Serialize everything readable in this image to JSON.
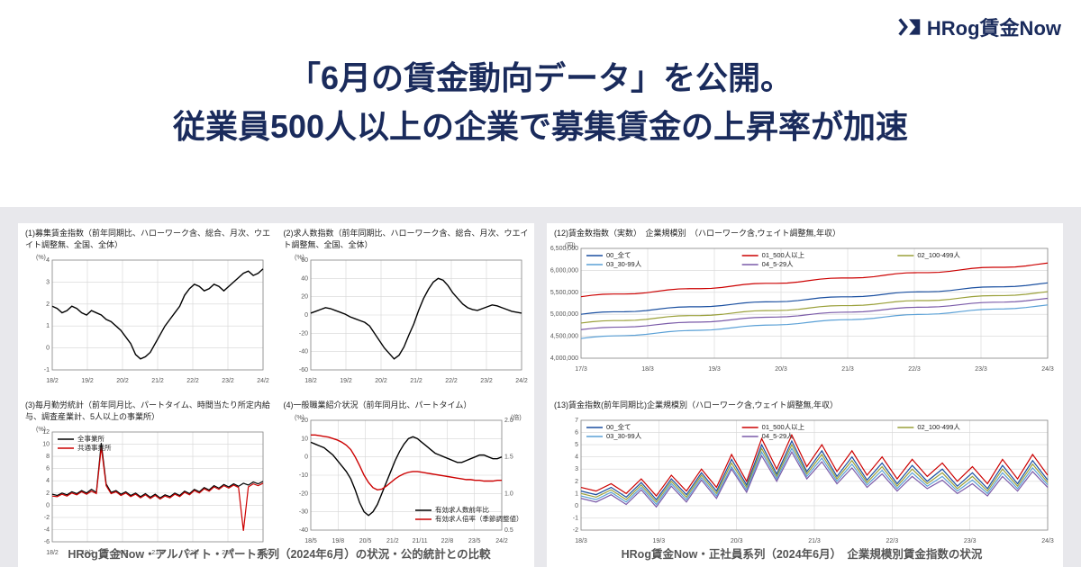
{
  "brand": {
    "name": "HRog賃金Now"
  },
  "headline": {
    "line1": "「6月の賃金動向データ」を公開。",
    "line2": "従業員500人以上の企業で募集賃金の上昇率が加速"
  },
  "captions": {
    "left": "HRog賃金Now・アルバイト・パート系列（2024年6月）の状況・公的統計との比較",
    "right": "HRog賃金Now・正社員系列（2024年6月）　企業規模別賃金指数の状況"
  },
  "x_ticks_a": [
    "18/2",
    "19/2",
    "20/2",
    "21/2",
    "22/2",
    "23/2",
    "24/2"
  ],
  "x_ticks_b": [
    "18/5",
    "19/8",
    "20/5",
    "21/2",
    "21/11",
    "22/8",
    "23/5",
    "24/2"
  ],
  "x_ticks_r1": [
    "17/3",
    "18/3",
    "19/3",
    "20/3",
    "21/3",
    "22/3",
    "23/3",
    "24/3"
  ],
  "x_ticks_r2": [
    "18/3",
    "19/3",
    "20/3",
    "21/3",
    "22/3",
    "23/3",
    "24/3"
  ],
  "charts": {
    "c1": {
      "title": "(1)募集賃金指数（前年同期比、ハローワーク含、総合、月次、ウエイト調整無、全国、全体）",
      "type": "line",
      "ylim": [
        -1.0,
        4.0
      ],
      "yticks": [
        -1,
        0,
        1,
        2,
        3,
        4
      ],
      "unit_label": "(%)",
      "series": [
        {
          "name": "全事業所",
          "color": "#000000",
          "width": 1.4,
          "y": [
            1.9,
            1.8,
            1.6,
            1.7,
            1.9,
            1.8,
            1.6,
            1.5,
            1.7,
            1.6,
            1.5,
            1.3,
            1.2,
            1.0,
            0.8,
            0.5,
            0.2,
            -0.3,
            -0.5,
            -0.4,
            -0.2,
            0.2,
            0.6,
            1.0,
            1.3,
            1.6,
            1.9,
            2.4,
            2.7,
            2.9,
            2.8,
            2.6,
            2.7,
            2.9,
            2.8,
            2.6,
            2.8,
            3.0,
            3.2,
            3.4,
            3.5,
            3.3,
            3.4,
            3.6
          ]
        }
      ]
    },
    "c2": {
      "title": "(2)求人数指数（前年同期比、ハローワーク含、総合、月次、ウエイト調整無、全国、全体）",
      "type": "line",
      "ylim": [
        -60,
        60
      ],
      "yticks": [
        -60,
        -40,
        -20,
        0,
        20,
        40,
        60
      ],
      "unit_label": "(%)",
      "series": [
        {
          "name": "全事業所",
          "color": "#000000",
          "width": 1.4,
          "y": [
            2,
            4,
            6,
            8,
            7,
            5,
            3,
            1,
            -2,
            -4,
            -6,
            -8,
            -12,
            -20,
            -28,
            -36,
            -42,
            -48,
            -44,
            -35,
            -22,
            -10,
            5,
            18,
            28,
            36,
            40,
            38,
            32,
            24,
            18,
            12,
            8,
            6,
            5,
            7,
            9,
            11,
            10,
            8,
            6,
            4,
            3,
            2
          ]
        }
      ]
    },
    "c3": {
      "title": "(3)毎月勤労統計（前年同月比、パートタイム、時間当たり所定内給与、調査産業計、5人以上の事業所）",
      "type": "line",
      "ylim": [
        -6,
        12
      ],
      "yticks": [
        -6,
        -4,
        -2,
        0,
        2,
        4,
        6,
        8,
        10,
        12
      ],
      "unit_label": "(%)",
      "legend_items": [
        {
          "label": "全事業所",
          "color": "#000000"
        },
        {
          "label": "共通事業所",
          "color": "#cc0000"
        }
      ],
      "series": [
        {
          "name": "全事業所",
          "color": "#000000",
          "width": 1.2,
          "y": [
            1.8,
            1.6,
            2.0,
            1.7,
            2.2,
            1.9,
            2.4,
            2.0,
            2.6,
            2.1,
            10.2,
            3.5,
            2.1,
            2.4,
            1.8,
            2.2,
            1.6,
            2.0,
            1.4,
            1.9,
            1.3,
            1.8,
            1.2,
            1.7,
            1.4,
            2.0,
            1.6,
            2.3,
            1.9,
            2.6,
            2.2,
            2.9,
            2.5,
            3.2,
            2.8,
            3.4,
            3.0,
            3.5,
            3.1,
            3.6,
            3.3,
            3.8,
            3.5,
            3.9
          ]
        },
        {
          "name": "共通事業所",
          "color": "#cc0000",
          "width": 1.2,
          "y": [
            1.5,
            1.4,
            1.8,
            1.5,
            2.0,
            1.7,
            2.2,
            1.8,
            2.3,
            1.9,
            9.5,
            3.2,
            1.9,
            2.2,
            1.6,
            2.0,
            1.4,
            1.8,
            1.2,
            1.7,
            1.1,
            1.6,
            1.0,
            1.5,
            1.2,
            1.8,
            1.4,
            2.1,
            1.7,
            2.4,
            2.0,
            2.7,
            2.3,
            3.0,
            2.6,
            3.2,
            2.8,
            3.3,
            2.9,
            -4.2,
            3.0,
            3.5,
            3.2,
            3.6
          ]
        }
      ]
    },
    "c4": {
      "title": "(4)一般職業紹介状況（前年同月比、パートタイム）",
      "type": "dual",
      "ylim_l": [
        -40,
        20
      ],
      "yticks_l": [
        -40,
        -30,
        -20,
        -10,
        0,
        10,
        20
      ],
      "ylim_r": [
        0.5,
        2.0
      ],
      "yticks_r": [
        0.5,
        1.0,
        1.5,
        2.0
      ],
      "unit_l": "(%)",
      "unit_r": "(倍)",
      "legend_items": [
        {
          "label": "有効求人数前年比",
          "color": "#000000"
        },
        {
          "label": "有効求人倍率（季節調整値）",
          "color": "#cc0000"
        }
      ],
      "series": [
        {
          "name": "有効求人数前年比",
          "axis": "l",
          "color": "#000000",
          "width": 1.4,
          "y": [
            8,
            7,
            6,
            5,
            3,
            1,
            -2,
            -5,
            -8,
            -12,
            -18,
            -25,
            -30,
            -32,
            -30,
            -26,
            -20,
            -14,
            -8,
            -2,
            3,
            7,
            10,
            11,
            10,
            8,
            6,
            4,
            2,
            1,
            0,
            -1,
            -2,
            -3,
            -3,
            -2,
            -1,
            0,
            1,
            1,
            0,
            -1,
            -1,
            0
          ]
        },
        {
          "name": "有効求人倍率",
          "axis": "r",
          "color": "#cc0000",
          "width": 1.4,
          "y": [
            1.8,
            1.8,
            1.79,
            1.78,
            1.77,
            1.75,
            1.73,
            1.7,
            1.66,
            1.6,
            1.5,
            1.38,
            1.25,
            1.15,
            1.08,
            1.05,
            1.06,
            1.1,
            1.15,
            1.2,
            1.24,
            1.27,
            1.29,
            1.3,
            1.3,
            1.29,
            1.28,
            1.27,
            1.26,
            1.25,
            1.24,
            1.23,
            1.22,
            1.21,
            1.2,
            1.19,
            1.19,
            1.18,
            1.18,
            1.17,
            1.17,
            1.17,
            1.18,
            1.18
          ]
        }
      ]
    },
    "r1": {
      "title": "(12)賃金数指数（実数）　企業規模別　（ハローワーク含,ウェイト調整無,年収）",
      "type": "line",
      "ylim": [
        4000000,
        6500000
      ],
      "yticks": [
        4000000,
        4500000,
        5000000,
        5500000,
        6000000,
        6500000
      ],
      "unit_label": "(円)",
      "legend_items": [
        {
          "label": "00_全て",
          "color": "#1a4fa0"
        },
        {
          "label": "01_500人以上",
          "color": "#cc0000"
        },
        {
          "label": "02_100-499人",
          "color": "#9aa03a"
        },
        {
          "label": "03_30-99人",
          "color": "#5aa0d6"
        },
        {
          "label": "04_5-29人",
          "color": "#7a5aa8"
        }
      ],
      "groups": [
        {
          "color": "#cc0000",
          "start": 5400000,
          "end": 6150000,
          "wobble": 40000
        },
        {
          "color": "#1a4fa0",
          "start": 5000000,
          "end": 5700000,
          "wobble": 35000
        },
        {
          "color": "#9aa03a",
          "start": 4800000,
          "end": 5500000,
          "wobble": 35000
        },
        {
          "color": "#7a5aa8",
          "start": 4650000,
          "end": 5350000,
          "wobble": 30000
        },
        {
          "color": "#5aa0d6",
          "start": 4450000,
          "end": 5200000,
          "wobble": 30000
        }
      ]
    },
    "r2": {
      "title": "(13)賃金指数(前年同期比)企業規模別（ハローワーク含,ウェイト調整無,年収）",
      "type": "line",
      "ylim": [
        -2,
        7
      ],
      "yticks": [
        -2,
        -1,
        0,
        1,
        2,
        3,
        4,
        5,
        6,
        7
      ],
      "unit_label": "",
      "legend_items": [
        {
          "label": "00_全て",
          "color": "#1a4fa0"
        },
        {
          "label": "01_500人以上",
          "color": "#cc0000"
        },
        {
          "label": "02_100-499人",
          "color": "#9aa03a"
        },
        {
          "label": "03_30-99人",
          "color": "#5aa0d6"
        },
        {
          "label": "04_5-29人",
          "color": "#7a5aa8"
        }
      ],
      "groups": [
        {
          "color": "#cc0000",
          "base": [
            1.5,
            1.2,
            1.8,
            1.0,
            2.2,
            0.8,
            2.5,
            1.2,
            3.0,
            1.5,
            4.2,
            2.0,
            5.5,
            3.0,
            5.8,
            3.2,
            5.0,
            2.8,
            4.5,
            2.5,
            4.0,
            2.2,
            3.8,
            2.4,
            3.5,
            2.0,
            3.2,
            1.8,
            3.8,
            2.2,
            4.2,
            2.5
          ]
        },
        {
          "color": "#1a4fa0",
          "base": [
            1.2,
            0.9,
            1.5,
            0.7,
            1.9,
            0.5,
            2.2,
            0.9,
            2.7,
            1.2,
            3.8,
            1.7,
            5.0,
            2.6,
            5.3,
            2.8,
            4.5,
            2.4,
            4.0,
            2.1,
            3.5,
            1.8,
            3.3,
            2.0,
            3.0,
            1.6,
            2.7,
            1.4,
            3.3,
            1.8,
            3.7,
            2.1
          ]
        },
        {
          "color": "#9aa03a",
          "base": [
            1.0,
            0.7,
            1.3,
            0.5,
            1.7,
            0.3,
            2.0,
            0.7,
            2.5,
            1.0,
            3.5,
            1.5,
            4.7,
            2.4,
            5.0,
            2.6,
            4.2,
            2.2,
            3.7,
            1.9,
            3.2,
            1.6,
            3.0,
            1.8,
            2.7,
            1.4,
            2.4,
            1.2,
            3.0,
            1.6,
            3.4,
            1.9
          ]
        },
        {
          "color": "#5aa0d6",
          "base": [
            0.8,
            0.5,
            1.1,
            0.3,
            1.5,
            0.1,
            1.8,
            0.5,
            2.3,
            0.8,
            3.2,
            1.3,
            4.4,
            2.2,
            4.7,
            2.4,
            3.9,
            2.0,
            3.4,
            1.7,
            2.9,
            1.4,
            2.7,
            1.6,
            2.4,
            1.2,
            2.1,
            1.0,
            2.7,
            1.4,
            3.1,
            1.7
          ]
        },
        {
          "color": "#7a5aa8",
          "base": [
            0.6,
            0.3,
            0.9,
            0.1,
            1.3,
            -0.1,
            1.6,
            0.3,
            2.1,
            0.6,
            3.0,
            1.1,
            4.1,
            2.0,
            4.4,
            2.2,
            3.6,
            1.8,
            3.1,
            1.5,
            2.6,
            1.2,
            2.4,
            1.4,
            2.1,
            1.0,
            1.8,
            0.8,
            2.4,
            1.2,
            2.8,
            1.5
          ]
        }
      ]
    }
  }
}
